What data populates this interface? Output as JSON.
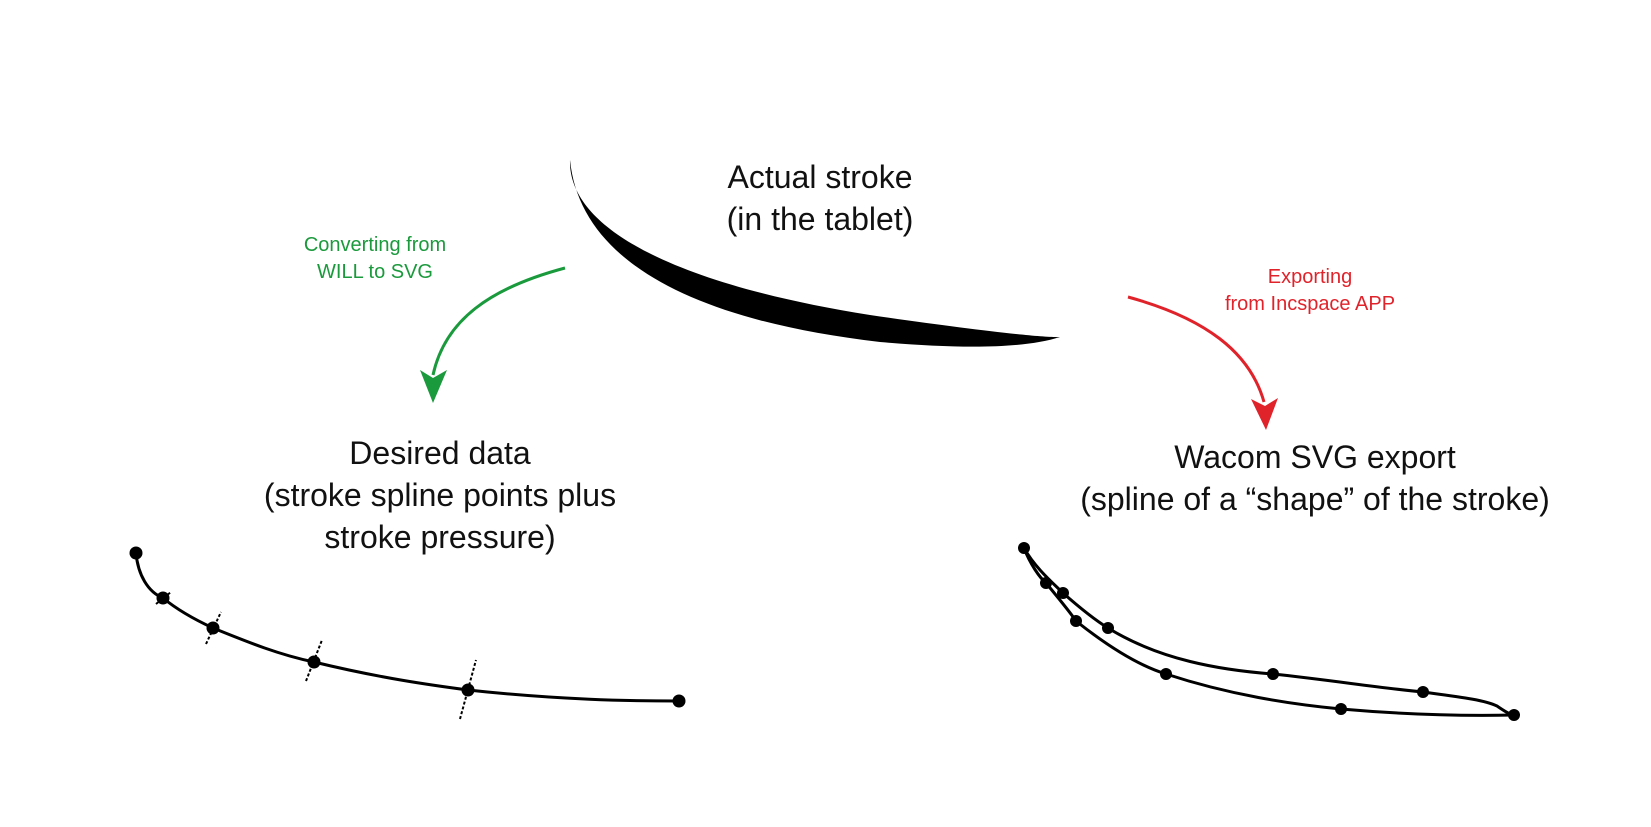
{
  "labels": {
    "actual_stroke": {
      "line1": "Actual stroke",
      "line2": "(in the tablet)"
    },
    "converting": {
      "line1": "Converting from",
      "line2": "WILL to SVG"
    },
    "exporting": {
      "line1": "Exporting",
      "line2": "from Incspace APP"
    },
    "desired_data": {
      "line1": "Desired data",
      "line2": "(stroke spline points plus",
      "line3": "stroke pressure)"
    },
    "wacom_export": {
      "line1": "Wacom SVG export",
      "line2": "(spline of a “shape” of the stroke)"
    }
  },
  "colors": {
    "stroke": "#000000",
    "converting_arrow": "#1a9a3c",
    "exporting_arrow": "#e0232b",
    "text": "#111111"
  }
}
